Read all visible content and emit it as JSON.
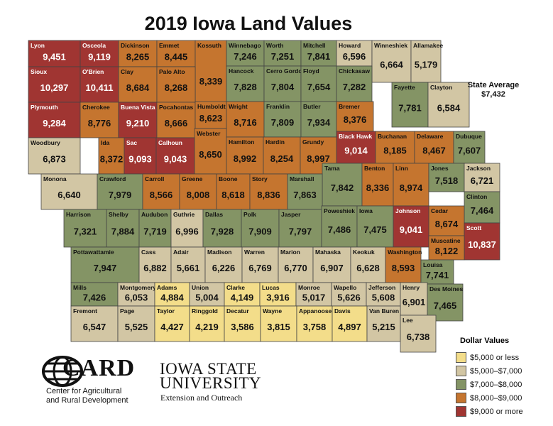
{
  "title": "2019 Iowa Land Values",
  "state_average": {
    "label": "State Average",
    "value": "$7,432"
  },
  "legend": {
    "title": "Dollar Values",
    "items": [
      {
        "label": "$5,000 or less",
        "color": "#f3dd8a"
      },
      {
        "label": "$5,000–$7,000",
        "color": "#d2c6a4"
      },
      {
        "label": "$7,000–$8,000",
        "color": "#849465"
      },
      {
        "label": "$8,000–$9,000",
        "color": "#c5752f"
      },
      {
        "label": "$9,000 or more",
        "color": "#a03532"
      }
    ]
  },
  "counties": [
    {
      "name": "Lyon",
      "value": "9,451",
      "cat": 4
    },
    {
      "name": "Osceola",
      "value": "9,119",
      "cat": 4
    },
    {
      "name": "Dickinson",
      "value": "8,265",
      "cat": 3
    },
    {
      "name": "Emmet",
      "value": "8,445",
      "cat": 3
    },
    {
      "name": "Kossuth",
      "value": "8,339",
      "cat": 3
    },
    {
      "name": "Winnebago",
      "value": "7,246",
      "cat": 2
    },
    {
      "name": "Worth",
      "value": "7,251",
      "cat": 2
    },
    {
      "name": "Mitchell",
      "value": "7,841",
      "cat": 2
    },
    {
      "name": "Howard",
      "value": "6,596",
      "cat": 1
    },
    {
      "name": "Winneshiek",
      "value": "6,664",
      "cat": 1
    },
    {
      "name": "Allamakee",
      "value": "5,179",
      "cat": 1
    },
    {
      "name": "Sioux",
      "value": "10,297",
      "cat": 4
    },
    {
      "name": "O'Brien",
      "value": "10,411",
      "cat": 4
    },
    {
      "name": "Clay",
      "value": "8,684",
      "cat": 3
    },
    {
      "name": "Palo Alto",
      "value": "8,268",
      "cat": 3
    },
    {
      "name": "Hancock",
      "value": "7,828",
      "cat": 2
    },
    {
      "name": "Cerro Gordo",
      "value": "7,804",
      "cat": 2
    },
    {
      "name": "Floyd",
      "value": "7,654",
      "cat": 2
    },
    {
      "name": "Chickasaw",
      "value": "7,282",
      "cat": 2
    },
    {
      "name": "Fayette",
      "value": "7,781",
      "cat": 2
    },
    {
      "name": "Clayton",
      "value": "6,584",
      "cat": 1
    },
    {
      "name": "Plymouth",
      "value": "9,284",
      "cat": 4
    },
    {
      "name": "Cherokee",
      "value": "8,776",
      "cat": 3
    },
    {
      "name": "Buena Vista",
      "value": "9,210",
      "cat": 4
    },
    {
      "name": "Pocahontas",
      "value": "8,666",
      "cat": 3
    },
    {
      "name": "Humboldt",
      "value": "8,623",
      "cat": 3
    },
    {
      "name": "Wright",
      "value": "8,716",
      "cat": 3
    },
    {
      "name": "Franklin",
      "value": "7,809",
      "cat": 2
    },
    {
      "name": "Butler",
      "value": "7,934",
      "cat": 2
    },
    {
      "name": "Bremer",
      "value": "8,376",
      "cat": 3
    },
    {
      "name": "Black Hawk",
      "value": "9,014",
      "cat": 4
    },
    {
      "name": "Buchanan",
      "value": "8,185",
      "cat": 3
    },
    {
      "name": "Delaware",
      "value": "8,467",
      "cat": 3
    },
    {
      "name": "Dubuque",
      "value": "7,607",
      "cat": 2
    },
    {
      "name": "Woodbury",
      "value": "6,873",
      "cat": 1
    },
    {
      "name": "Ida",
      "value": "8,372",
      "cat": 3
    },
    {
      "name": "Sac",
      "value": "9,093",
      "cat": 4
    },
    {
      "name": "Calhoun",
      "value": "9,043",
      "cat": 4
    },
    {
      "name": "Webster",
      "value": "8,650",
      "cat": 3
    },
    {
      "name": "Hamilton",
      "value": "8,992",
      "cat": 3
    },
    {
      "name": "Hardin",
      "value": "8,254",
      "cat": 3
    },
    {
      "name": "Grundy",
      "value": "8,997",
      "cat": 3
    },
    {
      "name": "Tama",
      "value": "7,842",
      "cat": 2
    },
    {
      "name": "Benton",
      "value": "8,336",
      "cat": 3
    },
    {
      "name": "Linn",
      "value": "8,974",
      "cat": 3
    },
    {
      "name": "Jones",
      "value": "7,518",
      "cat": 2
    },
    {
      "name": "Jackson",
      "value": "6,721",
      "cat": 1
    },
    {
      "name": "Monona",
      "value": "6,640",
      "cat": 1
    },
    {
      "name": "Crawford",
      "value": "7,979",
      "cat": 2
    },
    {
      "name": "Carroll",
      "value": "8,566",
      "cat": 3
    },
    {
      "name": "Greene",
      "value": "8,008",
      "cat": 3
    },
    {
      "name": "Boone",
      "value": "8,618",
      "cat": 3
    },
    {
      "name": "Story",
      "value": "8,836",
      "cat": 3
    },
    {
      "name": "Marshall",
      "value": "7,863",
      "cat": 2
    },
    {
      "name": "Clinton",
      "value": "7,464",
      "cat": 2
    },
    {
      "name": "Cedar",
      "value": "8,674",
      "cat": 3
    },
    {
      "name": "Harrison",
      "value": "7,321",
      "cat": 2
    },
    {
      "name": "Shelby",
      "value": "7,884",
      "cat": 2
    },
    {
      "name": "Audubon",
      "value": "7,719",
      "cat": 2
    },
    {
      "name": "Guthrie",
      "value": "6,996",
      "cat": 1
    },
    {
      "name": "Dallas",
      "value": "7,928",
      "cat": 2
    },
    {
      "name": "Polk",
      "value": "7,909",
      "cat": 2
    },
    {
      "name": "Jasper",
      "value": "7,797",
      "cat": 2
    },
    {
      "name": "Poweshiek",
      "value": "7,486",
      "cat": 2
    },
    {
      "name": "Iowa",
      "value": "7,475",
      "cat": 2
    },
    {
      "name": "Johnson",
      "value": "9,041",
      "cat": 4
    },
    {
      "name": "Scott",
      "value": "10,837",
      "cat": 4
    },
    {
      "name": "Muscatine",
      "value": "8,122",
      "cat": 3
    },
    {
      "name": "Pottawattamie",
      "value": "7,947",
      "cat": 2
    },
    {
      "name": "Cass",
      "value": "6,882",
      "cat": 1
    },
    {
      "name": "Adair",
      "value": "5,661",
      "cat": 1
    },
    {
      "name": "Madison",
      "value": "6,226",
      "cat": 1
    },
    {
      "name": "Warren",
      "value": "6,769",
      "cat": 1
    },
    {
      "name": "Marion",
      "value": "6,770",
      "cat": 1
    },
    {
      "name": "Mahaska",
      "value": "6,907",
      "cat": 1
    },
    {
      "name": "Keokuk",
      "value": "6,628",
      "cat": 1
    },
    {
      "name": "Washington",
      "value": "8,593",
      "cat": 3
    },
    {
      "name": "Louisa",
      "value": "7,741",
      "cat": 2
    },
    {
      "name": "Mills",
      "value": "7,426",
      "cat": 2
    },
    {
      "name": "Montgomery",
      "value": "6,053",
      "cat": 1
    },
    {
      "name": "Adams",
      "value": "4,884",
      "cat": 0
    },
    {
      "name": "Union",
      "value": "5,004",
      "cat": 1
    },
    {
      "name": "Clarke",
      "value": "4,149",
      "cat": 0
    },
    {
      "name": "Lucas",
      "value": "3,916",
      "cat": 0
    },
    {
      "name": "Monroe",
      "value": "5,017",
      "cat": 1
    },
    {
      "name": "Wapello",
      "value": "5,626",
      "cat": 1
    },
    {
      "name": "Jefferson",
      "value": "5,608",
      "cat": 1
    },
    {
      "name": "Henry",
      "value": "6,901",
      "cat": 1
    },
    {
      "name": "Des Moines",
      "value": "7,465",
      "cat": 2
    },
    {
      "name": "Fremont",
      "value": "6,547",
      "cat": 1
    },
    {
      "name": "Page",
      "value": "5,525",
      "cat": 1
    },
    {
      "name": "Taylor",
      "value": "4,427",
      "cat": 0
    },
    {
      "name": "Ringgold",
      "value": "4,219",
      "cat": 0
    },
    {
      "name": "Decatur",
      "value": "3,586",
      "cat": 0
    },
    {
      "name": "Wayne",
      "value": "3,815",
      "cat": 0
    },
    {
      "name": "Appanoose",
      "value": "3,758",
      "cat": 0
    },
    {
      "name": "Davis",
      "value": "4,897",
      "cat": 0
    },
    {
      "name": "Van Buren",
      "value": "5,215",
      "cat": 1
    },
    {
      "name": "Lee",
      "value": "6,738",
      "cat": 1
    }
  ],
  "logos": {
    "card_word": "CARD",
    "card_sub1": "Center for Agricultural",
    "card_sub2": "and Rural Development",
    "isu_line1": "Iowa State",
    "isu_line2": "University",
    "isu_ext": "Extension and Outreach"
  }
}
